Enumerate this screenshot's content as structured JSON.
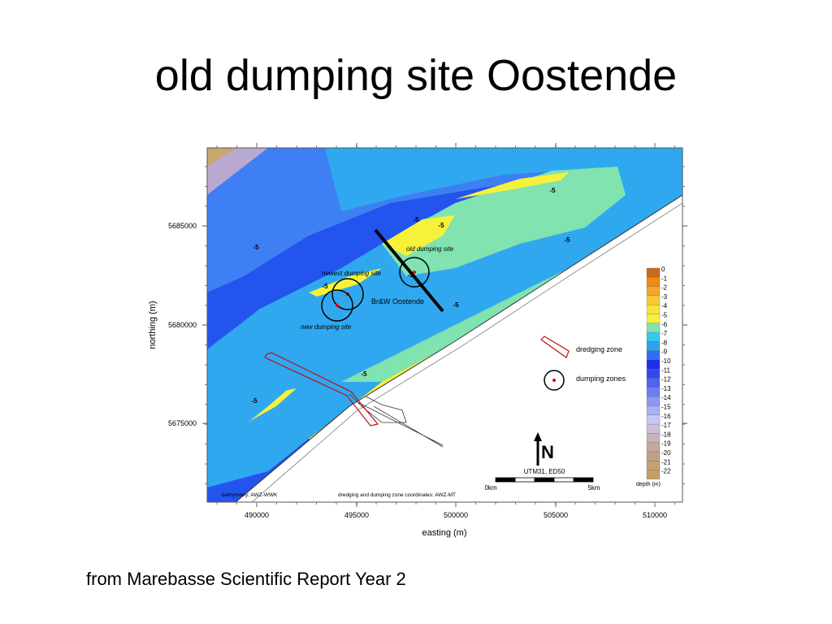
{
  "title": "old dumping site Oostende",
  "caption": "from Marebasse Scientific Report Year 2",
  "map": {
    "x_axis": {
      "label": "easting (m)",
      "ticks": [
        490000,
        495000,
        500000,
        505000,
        510000
      ]
    },
    "y_axis": {
      "label": "northing (m)",
      "ticks": [
        5685000,
        5680000,
        5675000
      ]
    },
    "contour_labels": [
      "-5",
      "-5",
      "-5",
      "-5",
      "-5",
      "-5",
      "-5",
      "-5",
      "-5",
      "-5"
    ],
    "site_labels": {
      "old": "old dumping site",
      "newest": "newest dumping site",
      "new": "new dumping site",
      "section": "Br&W Oostende"
    },
    "legend": {
      "depth_levels": [
        "0",
        "-1",
        "-2",
        "-3",
        "-4",
        "-5",
        "-6",
        "-7",
        "-8",
        "-9",
        "-10",
        "-11",
        "-12",
        "-13",
        "-14",
        "-15",
        "-16",
        "-17",
        "-18",
        "-19",
        "-20",
        "-21",
        "-22"
      ],
      "depth_unit": "depth (m)",
      "dredging_zone": "dredging zone",
      "dumping_zones": "dumping zones"
    },
    "north": "N",
    "projection": "UTM31, ED50",
    "scale": [
      "0km",
      "5km"
    ],
    "credits": [
      "bathymetry: AWZ-WWK",
      "dredging and dumping zone coordinates: AWZ-MT"
    ]
  }
}
